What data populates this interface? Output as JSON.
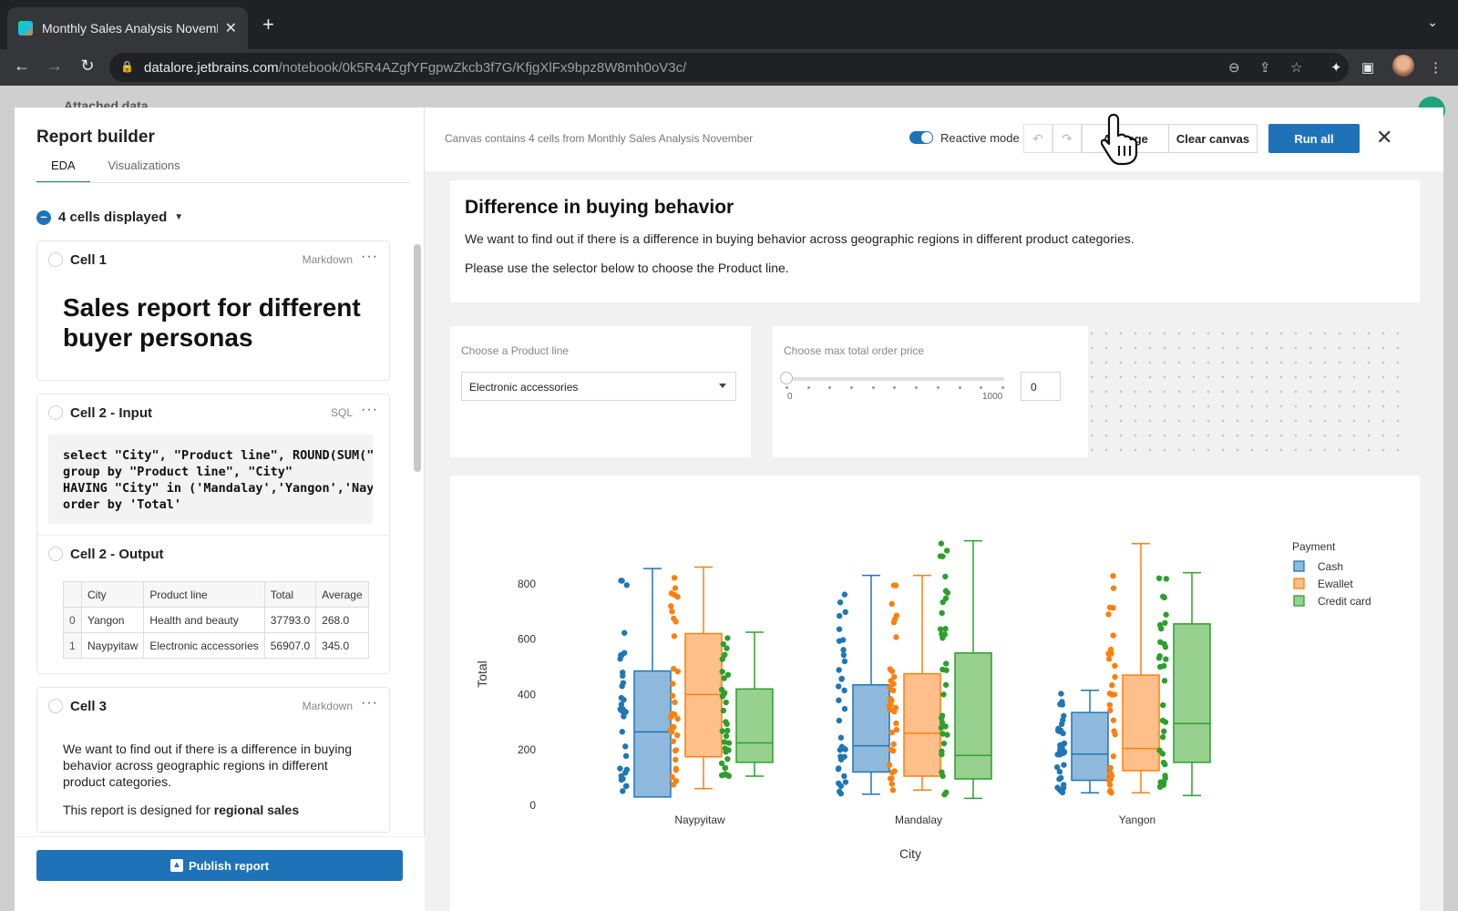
{
  "browser": {
    "tab_title": "Monthly Sales Analysis November",
    "url_domain": "datalore.jetbrains.com",
    "url_path": "/notebook/0k5R4AZgfYFgpwZkcb3f7G/KfjgXlFx9bpz8W8mh0oV3c/"
  },
  "background_app": {
    "title": "Attached data"
  },
  "report_builder": {
    "title": "Report builder",
    "tabs": [
      "EDA",
      "Visualizations"
    ],
    "cells_summary": "4 cells displayed",
    "cells": [
      {
        "title": "Cell 1",
        "type": "Markdown",
        "heading": "Sales report for different buyer personas"
      },
      {
        "title": "Cell 2 - Input",
        "type": "SQL",
        "code_lines": [
          "select \"City\", \"Product line\", ROUND(SUM(\"",
          "group by \"Product line\", \"City\"",
          "HAVING \"City\" in ('Mandalay','Yangon','Nay",
          "order by 'Total'"
        ]
      },
      {
        "title": "Cell 2 - Output",
        "columns": [
          "",
          "City",
          "Product line",
          "Total",
          "Average"
        ],
        "rows": [
          [
            "0",
            "Yangon",
            "Health and beauty",
            "37793.0",
            "268.0"
          ],
          [
            "1",
            "Naypyitaw",
            "Electronic accessories",
            "56907.0",
            "345.0"
          ]
        ]
      },
      {
        "title": "Cell 3",
        "type": "Markdown",
        "paragraph": "We want to find out if there is a difference in buying behavior across geographic regions in different product categories.",
        "paragraph2_prefix": "This report is designed for ",
        "paragraph2_bold": "regional sales"
      }
    ],
    "publish_label": "Publish report"
  },
  "canvas": {
    "info": "Canvas contains 4 cells from Monthly Sales Analysis November",
    "reactive_label": "Reactive mode",
    "arrange_label": "Arrange",
    "clear_label": "Clear canvas",
    "run_label": "Run all",
    "md_title": "Difference in buying behavior",
    "md_p1": "We want to find out if there is a difference in buying behavior across geographic regions in different product categories.",
    "md_p2": "Please use the selector below to choose the Product line.",
    "product_label": "Choose a Product line",
    "product_value": "Electronic accessories",
    "price_label": "Choose max total order price",
    "slider_min": "0",
    "slider_max": "1000",
    "slider_value": "0"
  },
  "chart_data": {
    "type": "box",
    "xlabel": "City",
    "ylabel": "Total",
    "categories": [
      "Naypyitaw",
      "Mandalay",
      "Yangon"
    ],
    "ylim": [
      -20,
      1000
    ],
    "yticks": [
      0,
      200,
      400,
      600,
      800
    ],
    "legend_title": "Payment",
    "legend_position": "top-right",
    "series": [
      {
        "name": "Cash",
        "color": "#1f77b4",
        "fill": "#8fb9dc",
        "boxes": [
          {
            "min": 30,
            "q1": 30,
            "median": 265,
            "q3": 485,
            "max": 855
          },
          {
            "min": 40,
            "q1": 120,
            "median": 215,
            "q3": 435,
            "max": 830
          },
          {
            "min": 45,
            "q1": 90,
            "median": 185,
            "q3": 335,
            "max": 415
          }
        ]
      },
      {
        "name": "Ewallet",
        "color": "#ff7f0e",
        "fill": "#ffbf8a",
        "boxes": [
          {
            "min": 60,
            "q1": 175,
            "median": 400,
            "q3": 620,
            "max": 860
          },
          {
            "min": 55,
            "q1": 105,
            "median": 260,
            "q3": 475,
            "max": 830
          },
          {
            "min": 45,
            "q1": 125,
            "median": 205,
            "q3": 470,
            "max": 945
          }
        ]
      },
      {
        "name": "Credit card",
        "color": "#2ca02c",
        "fill": "#98d090",
        "boxes": [
          {
            "min": 105,
            "q1": 155,
            "median": 225,
            "q3": 420,
            "max": 625
          },
          {
            "min": 25,
            "q1": 95,
            "median": 180,
            "q3": 550,
            "max": 955
          },
          {
            "min": 35,
            "q1": 155,
            "median": 295,
            "q3": 655,
            "max": 840
          }
        ]
      }
    ]
  }
}
